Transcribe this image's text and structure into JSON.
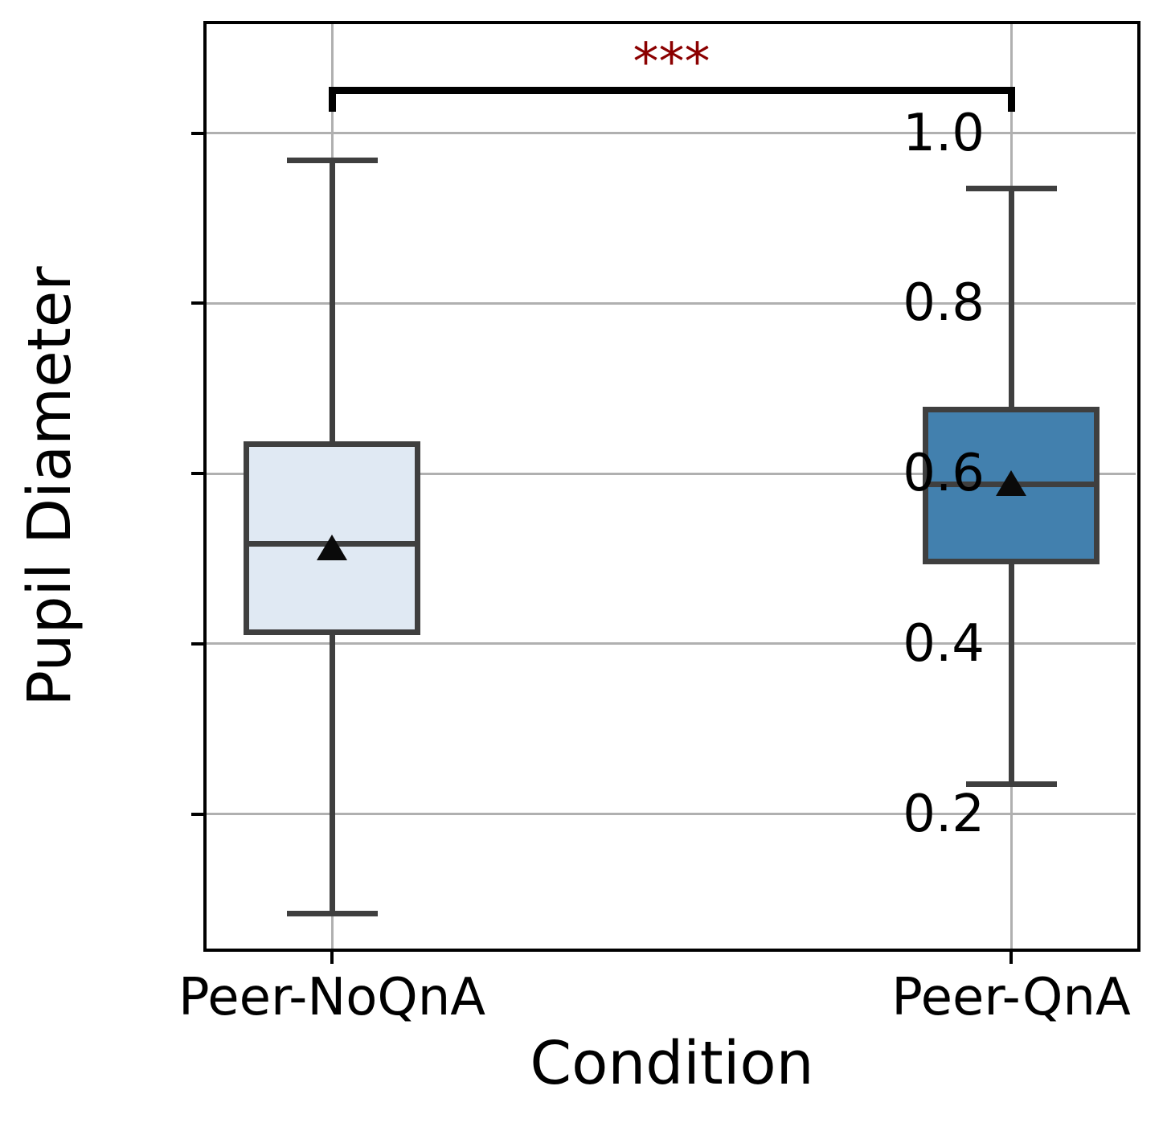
{
  "chart_data": {
    "type": "box",
    "title": "",
    "xlabel": "Condition",
    "ylabel": "Pupil Diameter",
    "categories": [
      "Peer-NoQnA",
      "Peer-QnA"
    ],
    "ylim": [
      0.04,
      1.13
    ],
    "yticks": [
      0.2,
      0.4,
      0.6,
      0.8,
      1.0
    ],
    "grid": true,
    "legend": "none",
    "series": [
      {
        "name": "Peer-NoQnA",
        "whisker_low": 0.083,
        "q1": 0.414,
        "median": 0.517,
        "q3": 0.635,
        "whisker_high": 0.968,
        "mean": 0.513,
        "fill_color": "#e0e9f3"
      },
      {
        "name": "Peer-QnA",
        "whisker_low": 0.235,
        "q1": 0.497,
        "median": 0.587,
        "q3": 0.675,
        "whisker_high": 0.935,
        "mean": 0.589,
        "fill_color": "#4280ae"
      }
    ],
    "significance": {
      "label": "***",
      "bar_y": 1.05,
      "drop": 0.025,
      "color": "#8b0000"
    },
    "colors": {
      "box_edge": "#3f3f3f",
      "gridline": "#b0b0b0",
      "spine": "#000000",
      "mean_marker": "#0a0a0a"
    }
  }
}
